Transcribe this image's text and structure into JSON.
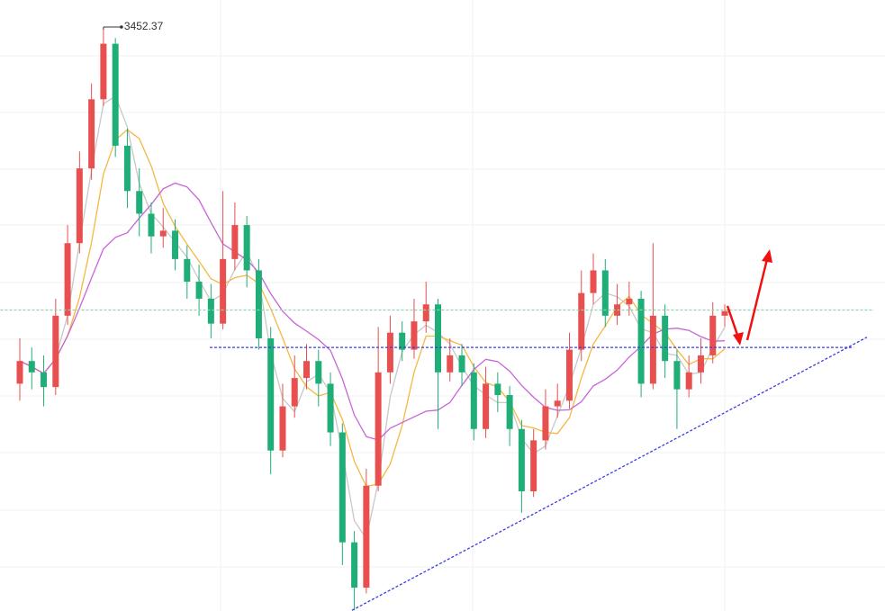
{
  "chart_data": {
    "type": "candlestick",
    "open": [
      3140,
      3160,
      3150,
      3137,
      3200,
      3264,
      3330,
      3391,
      3440,
      3350,
      3310,
      3290,
      3270,
      3275,
      3250,
      3230,
      3215,
      3193,
      3250,
      3280,
      3240,
      3180,
      3081,
      3120,
      3145,
      3160,
      3140,
      3097,
      3000,
      2960,
      3050,
      3150,
      3185,
      3170,
      3195,
      3210,
      3150,
      3165,
      3150,
      3100,
      3140,
      3130,
      3100,
      3045,
      3090,
      3120,
      3125,
      3170,
      3220,
      3240,
      3200,
      3210,
      3215,
      3140,
      3200,
      3160,
      3135,
      3150,
      3165,
      3200
    ],
    "high": [
      3180,
      3172,
      3165,
      3215,
      3280,
      3345,
      3405,
      3452.37,
      3445,
      3365,
      3330,
      3300,
      3295,
      3285,
      3262,
      3245,
      3228,
      3310,
      3300,
      3288,
      3250,
      3190,
      3140,
      3165,
      3175,
      3170,
      3150,
      3105,
      3010,
      3065,
      3190,
      3200,
      3195,
      3215,
      3230,
      3215,
      3180,
      3175,
      3158,
      3155,
      3150,
      3138,
      3108,
      3100,
      3135,
      3140,
      3185,
      3240,
      3255,
      3250,
      3228,
      3230,
      3222,
      3264,
      3210,
      3170,
      3165,
      3180,
      3212,
      3210
    ],
    "low": [
      3125,
      3135,
      3120,
      3130,
      3192,
      3255,
      3320,
      3385,
      3340,
      3295,
      3270,
      3255,
      3260,
      3240,
      3215,
      3200,
      3180,
      3188,
      3240,
      3225,
      3170,
      3060,
      3075,
      3110,
      3135,
      3120,
      3085,
      2980,
      2940,
      2955,
      3045,
      3140,
      3160,
      3162,
      3185,
      3100,
      3142,
      3138,
      3090,
      3092,
      3115,
      3085,
      3026,
      3040,
      3082,
      3110,
      3118,
      3160,
      3210,
      3190,
      3192,
      3200,
      3128,
      3135,
      3145,
      3100,
      3128,
      3140,
      3158,
      3190
    ],
    "close": [
      3160,
      3150,
      3137,
      3200,
      3264,
      3330,
      3391,
      3440,
      3350,
      3310,
      3290,
      3270,
      3275,
      3250,
      3230,
      3215,
      3193,
      3250,
      3280,
      3240,
      3180,
      3081,
      3120,
      3145,
      3160,
      3140,
      3097,
      3000,
      2960,
      3050,
      3150,
      3185,
      3170,
      3195,
      3210,
      3150,
      3165,
      3150,
      3100,
      3140,
      3130,
      3100,
      3045,
      3090,
      3120,
      3125,
      3170,
      3220,
      3240,
      3200,
      3210,
      3215,
      3140,
      3200,
      3160,
      3135,
      3150,
      3165,
      3200,
      3204
    ],
    "up_color": "#e8504f",
    "down_color": "#1fae78",
    "ylim": [
      2939.4,
      3478.6
    ],
    "grid": true,
    "lines": [
      {
        "color": "#8fd4aa",
        "x": [
          -2,
          71.5
        ],
        "y": [
          3205,
          3205
        ]
      },
      {
        "color": "#3b3be6",
        "x": [
          15.9,
          69.8
        ],
        "y": [
          3172,
          3172
        ]
      },
      {
        "color": "#3b3be6",
        "x": [
          27.8,
          70.9
        ],
        "y": [
          2940,
          3181
        ]
      }
    ]
  }
}
